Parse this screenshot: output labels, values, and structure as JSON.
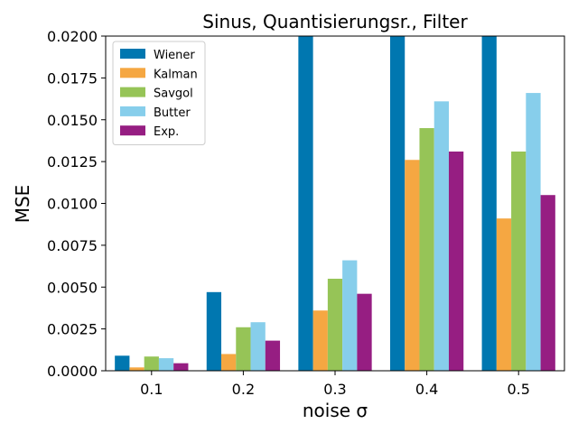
{
  "chart_data": {
    "type": "bar",
    "title": "Sinus, Quantisierungsr., Filter",
    "xlabel": "noise σ",
    "ylabel": "MSE",
    "categories": [
      "0.1",
      "0.2",
      "0.3",
      "0.4",
      "0.5"
    ],
    "ylim": [
      0,
      0.02
    ],
    "yticks": [
      "0.0000",
      "0.0025",
      "0.0050",
      "0.0075",
      "0.0100",
      "0.0125",
      "0.0150",
      "0.0175",
      "0.0200"
    ],
    "grid": false,
    "legend_position": "top-left",
    "series": [
      {
        "name": "Wiener",
        "color": "#0077B0",
        "values": [
          0.0009,
          0.0047,
          0.02,
          0.02,
          0.02
        ]
      },
      {
        "name": "Kalman",
        "color": "#F5A742",
        "values": [
          0.0002,
          0.001,
          0.0036,
          0.0126,
          0.0091
        ]
      },
      {
        "name": "Savgol",
        "color": "#96C457",
        "values": [
          0.00085,
          0.0026,
          0.0055,
          0.0145,
          0.0131
        ]
      },
      {
        "name": "Butter",
        "color": "#87CEEB",
        "values": [
          0.00075,
          0.0029,
          0.0066,
          0.0161,
          0.0166
        ]
      },
      {
        "name": "Exp.",
        "color": "#961E82",
        "values": [
          0.00045,
          0.0018,
          0.0046,
          0.0131,
          0.0105
        ]
      }
    ]
  }
}
